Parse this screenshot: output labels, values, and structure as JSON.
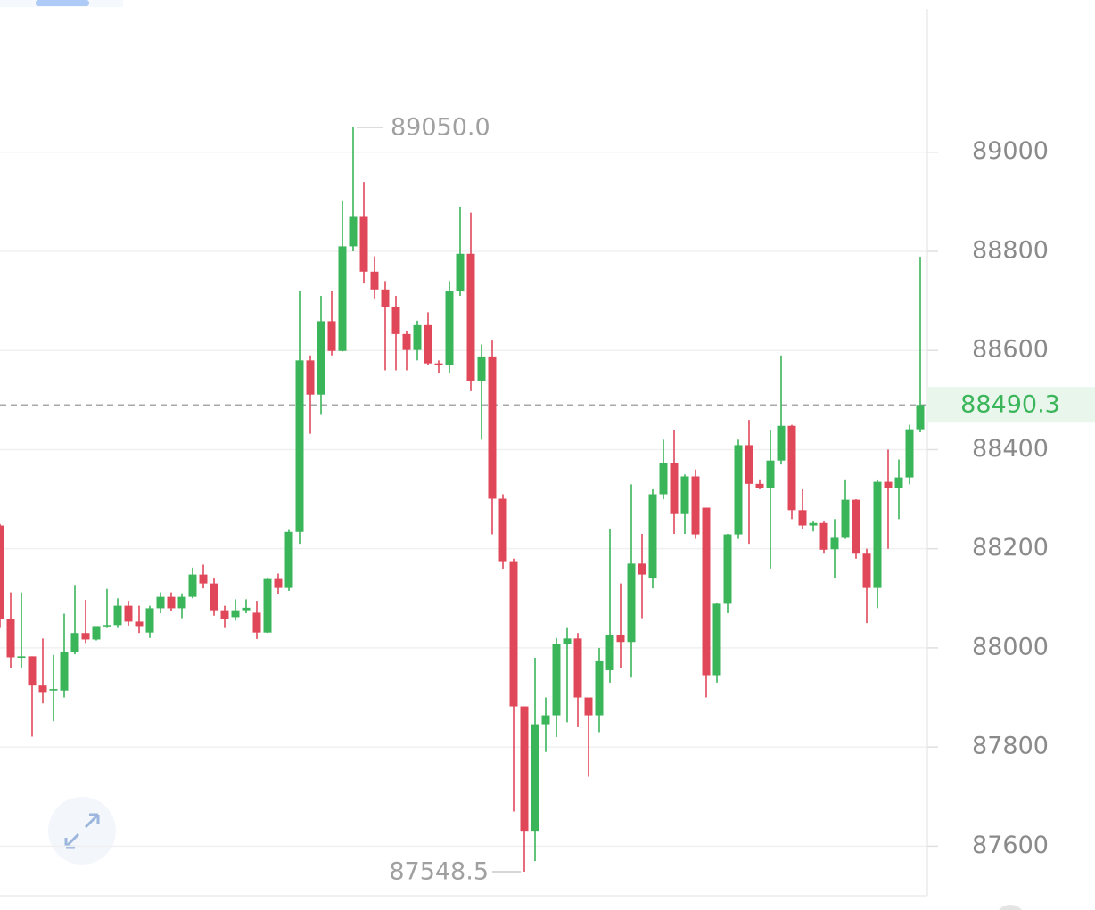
{
  "chart_data": {
    "type": "candlestick",
    "ylim": [
      87500,
      89307
    ],
    "yticks": [
      87600,
      87800,
      88000,
      88200,
      88400,
      88600,
      88800,
      89000
    ],
    "grid": true,
    "up_color": "#3bb55a",
    "down_color": "#e0485a",
    "open": [
      88247,
      88058,
      87980,
      87983,
      87924,
      87914,
      87914,
      87992,
      88030,
      88017,
      88045,
      88046,
      88085,
      88053,
      88031,
      88080,
      88103,
      88080,
      88103,
      88148,
      88130,
      88076,
      88062,
      88076,
      88071,
      88031,
      88139,
      88121,
      88234,
      88580,
      88511,
      88659,
      88599,
      88810,
      88871,
      88759,
      88723,
      88687,
      88633,
      88601,
      88651,
      88574,
      88570,
      88719,
      88795,
      88538,
      88588,
      88301,
      88175,
      87882,
      87631,
      87846,
      87864,
      88008,
      88019,
      87900,
      87864,
      87955,
      88026,
      88012,
      88170,
      88140,
      88310,
      88373,
      88270,
      88346,
      88283,
      87945,
      88089,
      88229,
      88409,
      88331,
      88322,
      88378,
      88448,
      88278,
      88247,
      88252,
      88199,
      88222,
      88299,
      88190,
      88121,
      88335,
      88323,
      88344,
      88441
    ],
    "high": [
      88250,
      88112,
      88112,
      87983,
      88019,
      87986,
      88069,
      88127,
      88097,
      88044,
      88119,
      88100,
      88095,
      88085,
      88085,
      88112,
      88112,
      88110,
      88162,
      88168,
      88140,
      88085,
      88098,
      88098,
      88095,
      88140,
      88150,
      88238,
      88720,
      88590,
      88710,
      88720,
      88903,
      89050,
      88940,
      88790,
      88740,
      88710,
      88640,
      88660,
      88677,
      88580,
      88740,
      88890,
      88878,
      88612,
      88620,
      88310,
      88180,
      87882,
      87980,
      87900,
      88020,
      88040,
      88030,
      87900,
      88000,
      88240,
      88130,
      88330,
      88230,
      88320,
      88420,
      88440,
      88350,
      88360,
      88283,
      88090,
      88230,
      88420,
      88460,
      88340,
      88440,
      88590,
      88450,
      88320,
      88255,
      88255,
      88260,
      88340,
      88300,
      88200,
      88340,
      88400,
      88380,
      88450,
      88789
    ],
    "low": [
      88040,
      87960,
      87960,
      87821,
      87888,
      87852,
      87900,
      87987,
      88010,
      88015,
      88040,
      88040,
      88045,
      88030,
      88020,
      88070,
      88075,
      88060,
      88100,
      88120,
      88065,
      88040,
      88055,
      88070,
      88018,
      88030,
      88108,
      88115,
      88210,
      88432,
      88470,
      88590,
      88598,
      88800,
      88735,
      88705,
      88560,
      88560,
      88560,
      88580,
      88570,
      88555,
      88555,
      88710,
      88518,
      88420,
      88229,
      88160,
      87670,
      87548.5,
      87570,
      87790,
      87820,
      87850,
      87840,
      87740,
      87830,
      87930,
      87960,
      87940,
      88060,
      88120,
      88300,
      88230,
      88230,
      88220,
      87900,
      87930,
      88070,
      88220,
      88210,
      88320,
      88160,
      88370,
      88260,
      88240,
      88235,
      88190,
      88140,
      88220,
      88180,
      88050,
      88080,
      88200,
      88260,
      88330,
      88435
    ],
    "close": [
      88058,
      87981,
      87983,
      87924,
      87911,
      87917,
      87992,
      88030,
      88017,
      88044,
      88046,
      88085,
      88053,
      88044,
      88080,
      88103,
      88080,
      88103,
      88148,
      88130,
      88076,
      88058,
      88076,
      88081,
      88031,
      88139,
      88121,
      88234,
      88580,
      88511,
      88659,
      88599,
      88810,
      88871,
      88759,
      88723,
      88687,
      88633,
      88601,
      88651,
      88574,
      88570,
      88719,
      88795,
      88538,
      88588,
      88301,
      88175,
      87882,
      87631,
      87846,
      87864,
      88008,
      88019,
      87900,
      87864,
      87973,
      88026,
      88012,
      88170,
      88148,
      88310,
      88373,
      88270,
      88346,
      88229,
      87945,
      88089,
      88229,
      88409,
      88331,
      88322,
      88378,
      88448,
      88278,
      88247,
      88252,
      88198,
      88222,
      88299,
      88190,
      88121,
      88335,
      88323,
      88344,
      88441,
      88490.3
    ],
    "annotations": {
      "high": {
        "value": 89050,
        "label": "89050.0"
      },
      "low": 87548.5,
      "last": 88490.3
    }
  }
}
